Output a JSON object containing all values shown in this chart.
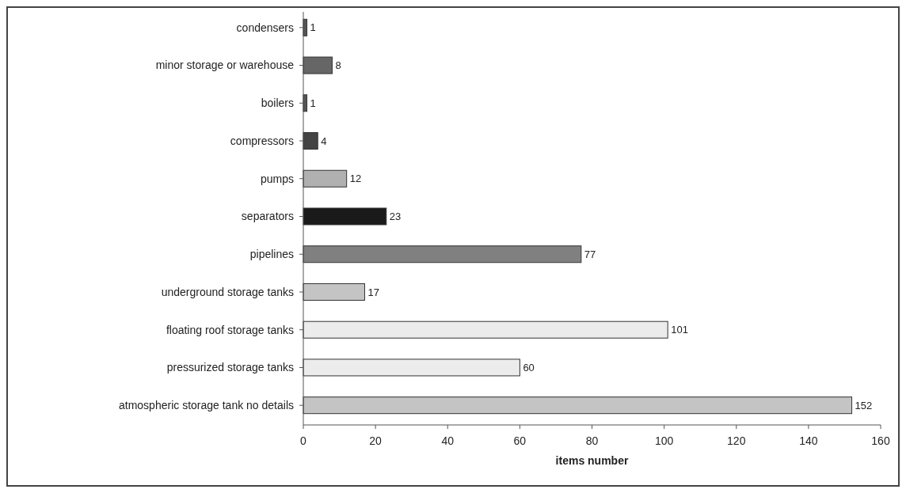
{
  "chart_data": {
    "type": "bar",
    "orientation": "horizontal",
    "xlabel": "items number",
    "categories": [
      "condensers",
      "minor storage or warehouse",
      "boilers",
      "compressors",
      "pumps",
      "separators",
      "pipelines",
      "underground storage tanks",
      "floating roof storage  tanks",
      "pressurized storage tanks",
      "atmospheric storage tank no details"
    ],
    "values": [
      1,
      8,
      1,
      4,
      12,
      23,
      77,
      17,
      101,
      60,
      152
    ],
    "colors": [
      "#555555",
      "#666666",
      "#555555",
      "#444444",
      "#b0b0b0",
      "#1a1a1a",
      "#808080",
      "#c4c4c4",
      "#ececec",
      "#ececec",
      "#c4c4c4"
    ],
    "xlim": [
      0,
      160
    ],
    "xticks": [
      0,
      20,
      40,
      60,
      80,
      100,
      120,
      140,
      160
    ],
    "data_labels": true,
    "grid": false
  }
}
